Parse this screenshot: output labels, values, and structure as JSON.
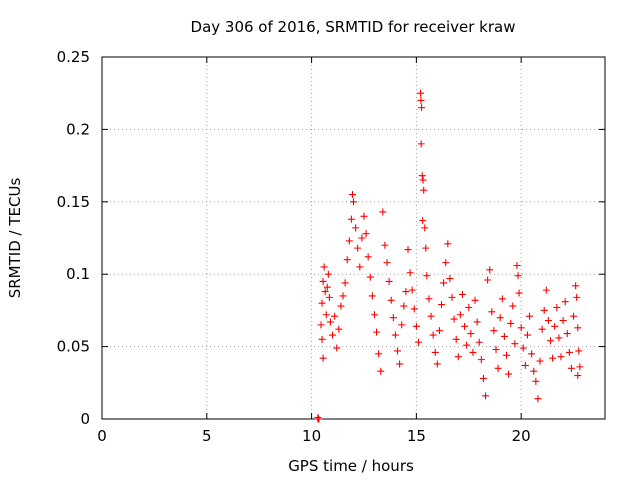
{
  "chart_data": {
    "type": "scatter",
    "title": "Day 306 of 2016, SRMTID for receiver kraw",
    "xlabel": "GPS time / hours",
    "ylabel": "SRMTID / TECUs",
    "xlim": [
      0,
      24
    ],
    "ylim": [
      0,
      0.25
    ],
    "x_ticks": [
      {
        "value": 0,
        "label": "0"
      },
      {
        "value": 5,
        "label": "5"
      },
      {
        "value": 10,
        "label": "10"
      },
      {
        "value": 15,
        "label": "15"
      },
      {
        "value": 20,
        "label": "20"
      }
    ],
    "y_ticks": [
      {
        "value": 0,
        "label": "0"
      },
      {
        "value": 0.05,
        "label": "0.05"
      },
      {
        "value": 0.1,
        "label": "0.1"
      },
      {
        "value": 0.15,
        "label": "0.15"
      },
      {
        "value": 0.2,
        "label": "0.2"
      },
      {
        "value": 0.25,
        "label": "0.25"
      }
    ],
    "grid": true,
    "marker": "+",
    "color": "#ff0000",
    "series": [
      {
        "name": "SRMTID",
        "points": [
          [
            10.3,
            0.0
          ],
          [
            10.35,
            0.0
          ],
          [
            10.3,
            0.001
          ],
          [
            10.45,
            0.065
          ],
          [
            10.5,
            0.08
          ],
          [
            10.55,
            0.095
          ],
          [
            10.6,
            0.105
          ],
          [
            10.65,
            0.088
          ],
          [
            10.7,
            0.072
          ],
          [
            10.5,
            0.055
          ],
          [
            10.55,
            0.042
          ],
          [
            10.75,
            0.091
          ],
          [
            10.8,
            0.1
          ],
          [
            10.85,
            0.084
          ],
          [
            10.9,
            0.067
          ],
          [
            11.0,
            0.058
          ],
          [
            11.1,
            0.071
          ],
          [
            11.2,
            0.049
          ],
          [
            11.3,
            0.062
          ],
          [
            11.4,
            0.078
          ],
          [
            11.5,
            0.085
          ],
          [
            11.6,
            0.094
          ],
          [
            11.7,
            0.11
          ],
          [
            11.8,
            0.123
          ],
          [
            11.9,
            0.138
          ],
          [
            11.95,
            0.155
          ],
          [
            12.0,
            0.15
          ],
          [
            12.1,
            0.132
          ],
          [
            12.2,
            0.118
          ],
          [
            12.3,
            0.105
          ],
          [
            12.4,
            0.125
          ],
          [
            12.5,
            0.14
          ],
          [
            12.6,
            0.128
          ],
          [
            12.7,
            0.112
          ],
          [
            12.8,
            0.098
          ],
          [
            12.9,
            0.085
          ],
          [
            13.0,
            0.072
          ],
          [
            13.1,
            0.06
          ],
          [
            13.2,
            0.045
          ],
          [
            13.3,
            0.033
          ],
          [
            13.4,
            0.143
          ],
          [
            13.5,
            0.12
          ],
          [
            13.6,
            0.108
          ],
          [
            13.7,
            0.095
          ],
          [
            13.8,
            0.082
          ],
          [
            13.9,
            0.07
          ],
          [
            14.0,
            0.058
          ],
          [
            14.1,
            0.047
          ],
          [
            14.2,
            0.038
          ],
          [
            14.3,
            0.065
          ],
          [
            14.4,
            0.078
          ],
          [
            14.5,
            0.088
          ],
          [
            14.6,
            0.117
          ],
          [
            14.7,
            0.101
          ],
          [
            14.8,
            0.089
          ],
          [
            14.9,
            0.076
          ],
          [
            15.0,
            0.064
          ],
          [
            15.1,
            0.053
          ],
          [
            15.2,
            0.225
          ],
          [
            15.22,
            0.22
          ],
          [
            15.25,
            0.215
          ],
          [
            15.23,
            0.19
          ],
          [
            15.28,
            0.168
          ],
          [
            15.32,
            0.165
          ],
          [
            15.35,
            0.158
          ],
          [
            15.3,
            0.137
          ],
          [
            15.4,
            0.132
          ],
          [
            15.45,
            0.118
          ],
          [
            15.5,
            0.099
          ],
          [
            15.6,
            0.083
          ],
          [
            15.7,
            0.071
          ],
          [
            15.8,
            0.058
          ],
          [
            15.9,
            0.046
          ],
          [
            16.0,
            0.038
          ],
          [
            16.1,
            0.061
          ],
          [
            16.2,
            0.079
          ],
          [
            16.3,
            0.094
          ],
          [
            16.4,
            0.108
          ],
          [
            16.5,
            0.121
          ],
          [
            16.6,
            0.097
          ],
          [
            16.7,
            0.084
          ],
          [
            16.8,
            0.069
          ],
          [
            16.9,
            0.055
          ],
          [
            17.0,
            0.043
          ],
          [
            17.1,
            0.072
          ],
          [
            17.2,
            0.086
          ],
          [
            17.3,
            0.064
          ],
          [
            17.4,
            0.051
          ],
          [
            17.5,
            0.077
          ],
          [
            17.6,
            0.059
          ],
          [
            17.7,
            0.046
          ],
          [
            17.8,
            0.082
          ],
          [
            17.9,
            0.067
          ],
          [
            18.0,
            0.053
          ],
          [
            18.1,
            0.041
          ],
          [
            18.2,
            0.028
          ],
          [
            18.3,
            0.016
          ],
          [
            18.4,
            0.096
          ],
          [
            18.5,
            0.103
          ],
          [
            18.6,
            0.074
          ],
          [
            18.7,
            0.061
          ],
          [
            18.8,
            0.048
          ],
          [
            18.9,
            0.035
          ],
          [
            19.0,
            0.07
          ],
          [
            19.1,
            0.083
          ],
          [
            19.2,
            0.057
          ],
          [
            19.3,
            0.044
          ],
          [
            19.4,
            0.031
          ],
          [
            19.5,
            0.066
          ],
          [
            19.6,
            0.078
          ],
          [
            19.7,
            0.052
          ],
          [
            19.8,
            0.106
          ],
          [
            19.85,
            0.099
          ],
          [
            19.9,
            0.087
          ],
          [
            20.0,
            0.063
          ],
          [
            20.1,
            0.049
          ],
          [
            20.2,
            0.037
          ],
          [
            20.3,
            0.058
          ],
          [
            20.4,
            0.071
          ],
          [
            20.5,
            0.045
          ],
          [
            20.6,
            0.033
          ],
          [
            20.7,
            0.026
          ],
          [
            20.8,
            0.014
          ],
          [
            20.9,
            0.04
          ],
          [
            21.0,
            0.062
          ],
          [
            21.1,
            0.075
          ],
          [
            21.2,
            0.089
          ],
          [
            21.3,
            0.068
          ],
          [
            21.4,
            0.054
          ],
          [
            21.5,
            0.042
          ],
          [
            21.6,
            0.064
          ],
          [
            21.7,
            0.077
          ],
          [
            21.8,
            0.056
          ],
          [
            21.9,
            0.043
          ],
          [
            22.0,
            0.068
          ],
          [
            22.1,
            0.081
          ],
          [
            22.2,
            0.059
          ],
          [
            22.3,
            0.046
          ],
          [
            22.4,
            0.035
          ],
          [
            22.5,
            0.071
          ],
          [
            22.6,
            0.092
          ],
          [
            22.65,
            0.084
          ],
          [
            22.7,
            0.063
          ],
          [
            22.75,
            0.047
          ],
          [
            22.8,
            0.036
          ],
          [
            22.7,
            0.03
          ]
        ]
      }
    ]
  }
}
